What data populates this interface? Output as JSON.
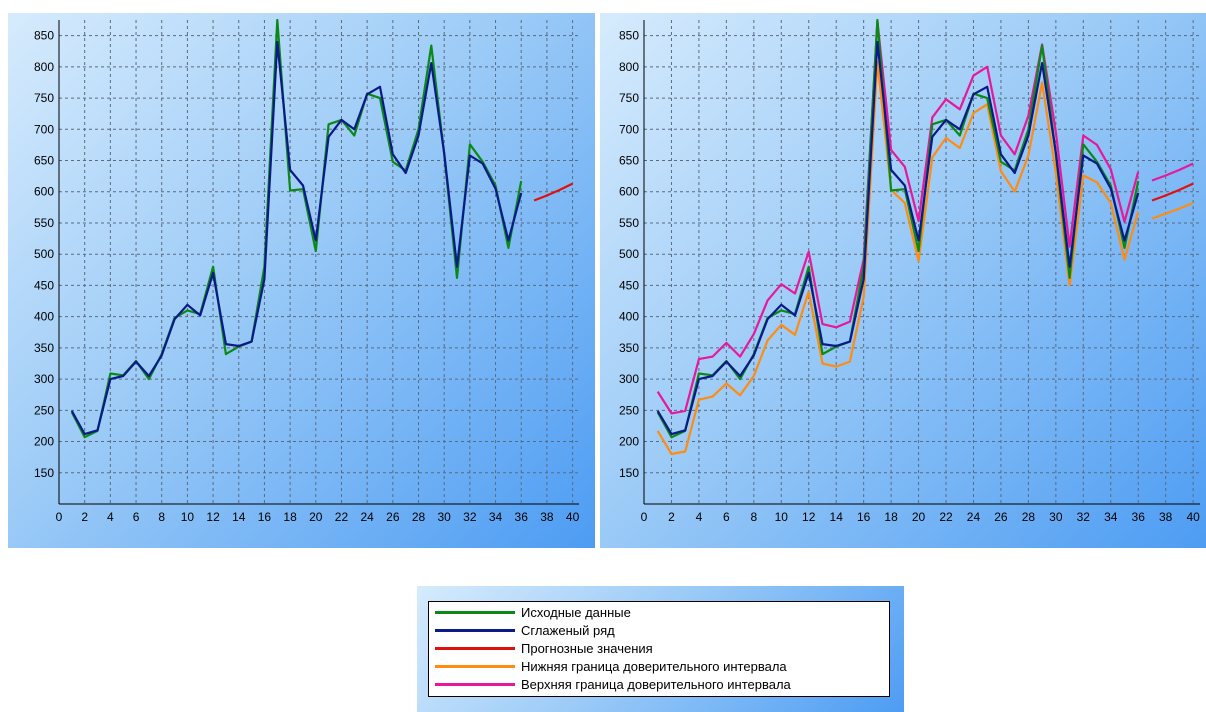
{
  "chart_data": [
    {
      "type": "line",
      "title": "",
      "xlabel": "",
      "ylabel": "",
      "xlim": [
        0,
        40.5
      ],
      "ylim": [
        100,
        875
      ],
      "xticks": [
        0,
        2,
        4,
        6,
        8,
        10,
        12,
        14,
        16,
        18,
        20,
        22,
        24,
        26,
        28,
        30,
        32,
        34,
        36,
        38,
        40
      ],
      "yticks": [
        150,
        200,
        250,
        300,
        350,
        400,
        450,
        500,
        550,
        600,
        650,
        700,
        750,
        800,
        850
      ],
      "grid": true,
      "series": [
        {
          "name": "Исходные данные",
          "color": "#0a8a14",
          "x": [
            1,
            2,
            3,
            4,
            5,
            6,
            7,
            8,
            9,
            10,
            11,
            12,
            13,
            14,
            15,
            16,
            17,
            18,
            19,
            20,
            21,
            22,
            23,
            24,
            25,
            26,
            27,
            28,
            29,
            30,
            31,
            32,
            33,
            34,
            35,
            36
          ],
          "y": [
            247,
            207,
            217,
            309,
            306,
            329,
            300,
            340,
            398,
            410,
            404,
            480,
            340,
            352,
            360,
            480,
            880,
            602,
            604,
            505,
            708,
            715,
            690,
            757,
            750,
            648,
            634,
            700,
            834,
            660,
            462,
            676,
            648,
            610,
            510,
            617
          ]
        },
        {
          "name": "Сглаженый ряд",
          "color": "#0a1a8a",
          "x": [
            1,
            2,
            3,
            4,
            5,
            6,
            7,
            8,
            9,
            10,
            11,
            12,
            13,
            14,
            15,
            16,
            17,
            18,
            19,
            20,
            21,
            22,
            23,
            24,
            25,
            26,
            27,
            28,
            29,
            30,
            31,
            32,
            33,
            34,
            35,
            36
          ],
          "y": [
            249,
            212,
            218,
            300,
            305,
            328,
            305,
            338,
            396,
            419,
            402,
            470,
            356,
            353,
            360,
            460,
            840,
            635,
            610,
            522,
            688,
            715,
            700,
            756,
            768,
            660,
            630,
            690,
            806,
            662,
            480,
            658,
            645,
            605,
            522,
            598
          ]
        },
        {
          "name": "Прогнозные значения",
          "color": "#e01010",
          "x": [
            37,
            38,
            39,
            40
          ],
          "y": [
            586,
            594,
            603,
            613
          ]
        }
      ]
    },
    {
      "type": "line",
      "title": "",
      "xlabel": "",
      "ylabel": "",
      "xlim": [
        0,
        40.5
      ],
      "ylim": [
        100,
        875
      ],
      "xticks": [
        0,
        2,
        4,
        6,
        8,
        10,
        12,
        14,
        16,
        18,
        20,
        22,
        24,
        26,
        28,
        30,
        32,
        34,
        36,
        38,
        40
      ],
      "yticks": [
        150,
        200,
        250,
        300,
        350,
        400,
        450,
        500,
        550,
        600,
        650,
        700,
        750,
        800,
        850
      ],
      "grid": true,
      "series": [
        {
          "name": "Нижняя граница доверительного интервала",
          "color": "#ff8c10",
          "x": [
            1,
            2,
            3,
            4,
            5,
            6,
            7,
            8,
            9,
            10,
            11,
            12,
            13,
            14,
            15,
            16,
            17,
            18,
            19,
            20,
            21,
            22,
            23,
            24,
            25,
            26,
            27,
            28,
            29,
            30,
            31,
            32,
            33,
            34,
            35,
            36,
            null,
            37,
            38,
            39,
            40
          ],
          "y": [
            217,
            180,
            184,
            267,
            272,
            293,
            274,
            305,
            362,
            387,
            371,
            440,
            325,
            320,
            328,
            432,
            808,
            603,
            582,
            489,
            655,
            686,
            670,
            726,
            740,
            633,
            600,
            658,
            775,
            630,
            450,
            626,
            615,
            582,
            491,
            568,
            null,
            557,
            565,
            573,
            582
          ]
        },
        {
          "name": "Верхняя граница доверительного интервала",
          "color": "#e8189c",
          "x": [
            1,
            2,
            3,
            4,
            5,
            6,
            7,
            8,
            9,
            10,
            11,
            12,
            13,
            14,
            15,
            16,
            17,
            18,
            19,
            20,
            21,
            22,
            23,
            24,
            25,
            26,
            27,
            28,
            29,
            30,
            31,
            32,
            33,
            34,
            35,
            36,
            null,
            37,
            38,
            39,
            40
          ],
          "y": [
            280,
            245,
            249,
            332,
            336,
            358,
            336,
            372,
            426,
            452,
            437,
            504,
            388,
            383,
            392,
            492,
            873,
            667,
            640,
            553,
            719,
            748,
            732,
            786,
            800,
            690,
            660,
            722,
            836,
            695,
            512,
            690,
            675,
            636,
            552,
            632,
            null,
            618,
            626,
            635,
            645
          ]
        },
        {
          "name": "Исходные данные",
          "color": "#0a8a14",
          "x": [
            1,
            2,
            3,
            4,
            5,
            6,
            7,
            8,
            9,
            10,
            11,
            12,
            13,
            14,
            15,
            16,
            17,
            18,
            19,
            20,
            21,
            22,
            23,
            24,
            25,
            26,
            27,
            28,
            29,
            30,
            31,
            32,
            33,
            34,
            35,
            36
          ],
          "y": [
            247,
            207,
            217,
            309,
            306,
            329,
            300,
            340,
            398,
            410,
            404,
            480,
            340,
            352,
            360,
            480,
            880,
            602,
            604,
            505,
            708,
            715,
            690,
            757,
            750,
            648,
            634,
            700,
            834,
            660,
            462,
            676,
            648,
            610,
            510,
            617
          ]
        },
        {
          "name": "Сглаженый ряд",
          "color": "#0a1a8a",
          "x": [
            1,
            2,
            3,
            4,
            5,
            6,
            7,
            8,
            9,
            10,
            11,
            12,
            13,
            14,
            15,
            16,
            17,
            18,
            19,
            20,
            21,
            22,
            23,
            24,
            25,
            26,
            27,
            28,
            29,
            30,
            31,
            32,
            33,
            34,
            35,
            36
          ],
          "y": [
            249,
            212,
            218,
            300,
            305,
            328,
            305,
            338,
            396,
            419,
            402,
            470,
            356,
            353,
            360,
            460,
            840,
            635,
            610,
            522,
            688,
            715,
            700,
            756,
            768,
            660,
            630,
            690,
            806,
            662,
            480,
            658,
            645,
            605,
            522,
            598
          ]
        },
        {
          "name": "Прогнозные значения",
          "color": "#e01010",
          "x": [
            37,
            38,
            39,
            40
          ],
          "y": [
            586,
            594,
            603,
            613
          ]
        }
      ]
    }
  ],
  "legend": {
    "items": [
      {
        "label": "Исходные данные",
        "color": "#0a8a14"
      },
      {
        "label": "Сглаженый ряд",
        "color": "#0a1a8a"
      },
      {
        "label": "Прогнозные значения",
        "color": "#e01010"
      },
      {
        "label": "Нижняя граница доверительного интервала",
        "color": "#ff8c10"
      },
      {
        "label": "Верхняя граница доверительного интервала",
        "color": "#e8189c"
      }
    ]
  }
}
